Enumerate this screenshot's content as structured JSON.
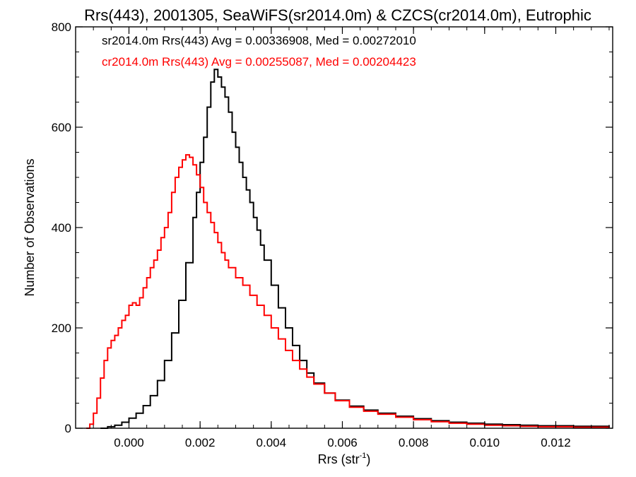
{
  "chart_data": {
    "type": "line",
    "title": "Rrs(443), 2001305, SeaWiFS(sr2014.0m) & CZCS(cr2014.0m), Eutrophic",
    "xlabel": "Rrs (str",
    "xlabel_sup": "-1",
    "xlabel_end": ")",
    "ylabel": "Number of Observations",
    "xlim": [
      -0.0015,
      0.0136
    ],
    "ylim": [
      0,
      800
    ],
    "xticks": [
      0.0,
      0.002,
      0.004,
      0.006,
      0.008,
      0.01,
      0.012
    ],
    "xtick_labels": [
      "0.000",
      "0.002",
      "0.004",
      "0.006",
      "0.008",
      "0.010",
      "0.012"
    ],
    "yticks": [
      0,
      200,
      400,
      600,
      800
    ],
    "ytick_labels": [
      "0",
      "200",
      "400",
      "600",
      "800"
    ],
    "annotations": [
      {
        "text": "sr2014.0m Rrs(443) Avg = 0.00336908, Med = 0.00272010",
        "color": "#000000"
      },
      {
        "text": "cr2014.0m Rrs(443) Avg = 0.00255087, Med = 0.00204423",
        "color": "#ff0000"
      }
    ],
    "series": [
      {
        "color": "#000000",
        "points": [
          [
            -0.0008,
            0
          ],
          [
            -0.0006,
            3
          ],
          [
            -0.0004,
            6
          ],
          [
            -0.0002,
            12
          ],
          [
            0.0,
            20
          ],
          [
            0.0002,
            30
          ],
          [
            0.0004,
            45
          ],
          [
            0.0006,
            65
          ],
          [
            0.0008,
            95
          ],
          [
            0.001,
            135
          ],
          [
            0.0012,
            190
          ],
          [
            0.0014,
            255
          ],
          [
            0.0016,
            330
          ],
          [
            0.0018,
            420
          ],
          [
            0.0019,
            470
          ],
          [
            0.002,
            530
          ],
          [
            0.0021,
            580
          ],
          [
            0.0022,
            640
          ],
          [
            0.0023,
            690
          ],
          [
            0.0024,
            715
          ],
          [
            0.0025,
            700
          ],
          [
            0.0026,
            680
          ],
          [
            0.0027,
            660
          ],
          [
            0.0028,
            630
          ],
          [
            0.0029,
            590
          ],
          [
            0.003,
            560
          ],
          [
            0.0031,
            530
          ],
          [
            0.0032,
            500
          ],
          [
            0.0033,
            475
          ],
          [
            0.0034,
            450
          ],
          [
            0.0035,
            420
          ],
          [
            0.0036,
            395
          ],
          [
            0.0037,
            365
          ],
          [
            0.0038,
            335
          ],
          [
            0.004,
            285
          ],
          [
            0.0042,
            240
          ],
          [
            0.0044,
            200
          ],
          [
            0.0046,
            165
          ],
          [
            0.0048,
            135
          ],
          [
            0.005,
            110
          ],
          [
            0.0052,
            90
          ],
          [
            0.0055,
            70
          ],
          [
            0.0058,
            56
          ],
          [
            0.0062,
            44
          ],
          [
            0.0066,
            36
          ],
          [
            0.007,
            30
          ],
          [
            0.0075,
            24
          ],
          [
            0.008,
            19
          ],
          [
            0.0085,
            15
          ],
          [
            0.009,
            12
          ],
          [
            0.0095,
            10
          ],
          [
            0.01,
            8
          ],
          [
            0.0105,
            7
          ],
          [
            0.011,
            6
          ],
          [
            0.0115,
            5
          ],
          [
            0.012,
            5
          ],
          [
            0.0125,
            4
          ],
          [
            0.013,
            4
          ],
          [
            0.0135,
            3
          ]
        ]
      },
      {
        "color": "#ff0000",
        "points": [
          [
            -0.0012,
            0
          ],
          [
            -0.0011,
            8
          ],
          [
            -0.001,
            30
          ],
          [
            -0.0009,
            60
          ],
          [
            -0.0008,
            100
          ],
          [
            -0.0007,
            135
          ],
          [
            -0.0006,
            160
          ],
          [
            -0.0005,
            175
          ],
          [
            -0.0004,
            185
          ],
          [
            -0.0003,
            200
          ],
          [
            -0.0002,
            215
          ],
          [
            -0.0001,
            225
          ],
          [
            0.0,
            245
          ],
          [
            0.0001,
            250
          ],
          [
            0.0002,
            245
          ],
          [
            0.0003,
            260
          ],
          [
            0.0004,
            280
          ],
          [
            0.0005,
            300
          ],
          [
            0.0006,
            320
          ],
          [
            0.0007,
            335
          ],
          [
            0.0008,
            355
          ],
          [
            0.0009,
            380
          ],
          [
            0.001,
            400
          ],
          [
            0.0011,
            430
          ],
          [
            0.0012,
            470
          ],
          [
            0.0013,
            500
          ],
          [
            0.0014,
            520
          ],
          [
            0.0015,
            535
          ],
          [
            0.0016,
            545
          ],
          [
            0.0017,
            540
          ],
          [
            0.0018,
            525
          ],
          [
            0.0019,
            505
          ],
          [
            0.002,
            480
          ],
          [
            0.0021,
            450
          ],
          [
            0.0022,
            430
          ],
          [
            0.0023,
            410
          ],
          [
            0.0024,
            390
          ],
          [
            0.0025,
            370
          ],
          [
            0.0026,
            350
          ],
          [
            0.0027,
            335
          ],
          [
            0.0028,
            320
          ],
          [
            0.003,
            300
          ],
          [
            0.0032,
            285
          ],
          [
            0.0034,
            265
          ],
          [
            0.0036,
            245
          ],
          [
            0.0038,
            225
          ],
          [
            0.004,
            200
          ],
          [
            0.0042,
            178
          ],
          [
            0.0044,
            155
          ],
          [
            0.0046,
            135
          ],
          [
            0.0048,
            118
          ],
          [
            0.005,
            102
          ],
          [
            0.0052,
            88
          ],
          [
            0.0055,
            70
          ],
          [
            0.0058,
            55
          ],
          [
            0.0062,
            42
          ],
          [
            0.0066,
            34
          ],
          [
            0.007,
            28
          ],
          [
            0.0075,
            22
          ],
          [
            0.008,
            17
          ],
          [
            0.0085,
            13
          ],
          [
            0.009,
            10
          ],
          [
            0.0095,
            8
          ],
          [
            0.01,
            6
          ],
          [
            0.0105,
            5
          ],
          [
            0.011,
            4
          ],
          [
            0.0115,
            3
          ],
          [
            0.012,
            3
          ],
          [
            0.0125,
            2
          ],
          [
            0.013,
            2
          ],
          [
            0.0135,
            1
          ]
        ]
      }
    ]
  }
}
